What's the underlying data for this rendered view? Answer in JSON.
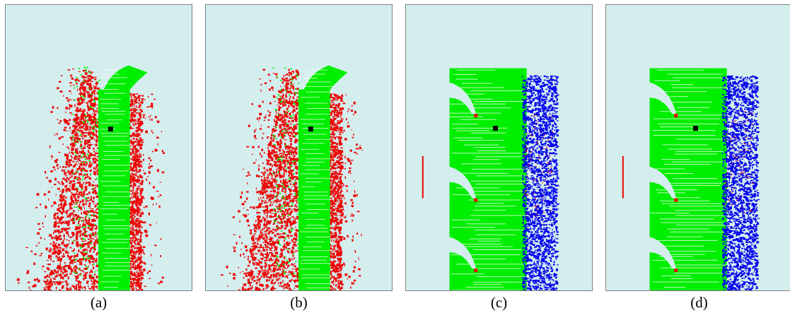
{
  "colors": {
    "background": "#d4eeee",
    "green": "#00ee00",
    "red": "#ee0000",
    "blue": "#0000ee",
    "marker": "#000000"
  },
  "panels": [
    {
      "caption": "(a)",
      "mode": "strip"
    },
    {
      "caption": "(b)",
      "mode": "strip"
    },
    {
      "caption": "(c)",
      "mode": "wide"
    },
    {
      "caption": "(d)",
      "mode": "wide"
    }
  ]
}
